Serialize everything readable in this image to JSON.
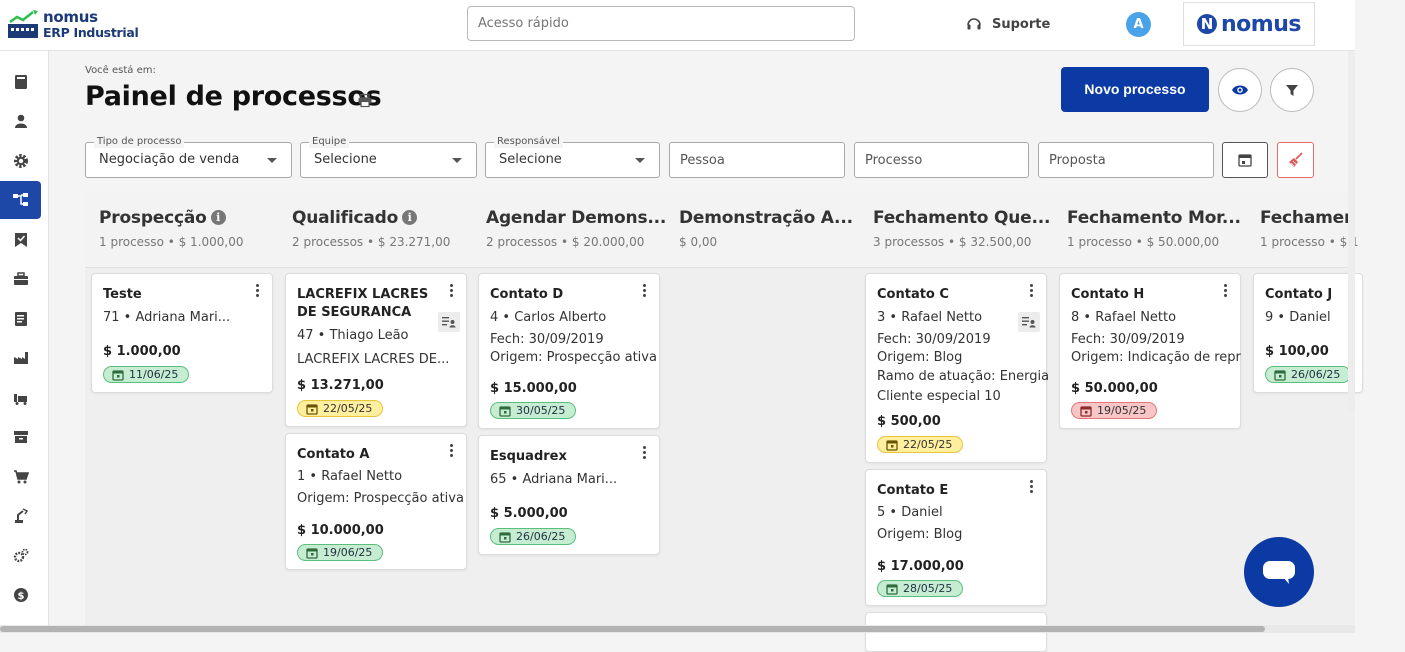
{
  "app": {
    "logo_line1": "nomus",
    "logo_line2": "ERP Industrial",
    "brand_text": "nomus",
    "brand_letter": "N"
  },
  "header": {
    "quick_access_placeholder": "Acesso rápido",
    "support_label": "Suporte",
    "avatar_letter": "A"
  },
  "sidebar": {
    "items": [
      {
        "icon": "book-icon"
      },
      {
        "icon": "user-icon"
      },
      {
        "icon": "gear-icon"
      },
      {
        "icon": "process-flow-icon",
        "active": true
      },
      {
        "icon": "bookmark-check-icon"
      },
      {
        "icon": "briefcase-icon"
      },
      {
        "icon": "ledger-icon"
      },
      {
        "icon": "factory-icon"
      },
      {
        "icon": "forklift-icon"
      },
      {
        "icon": "archive-icon"
      },
      {
        "icon": "cart-icon"
      },
      {
        "icon": "robot-arm-icon"
      },
      {
        "icon": "gears-icon"
      },
      {
        "icon": "dollar-icon"
      }
    ]
  },
  "page": {
    "breadcrumb": "Você está em:",
    "title": "Painel de processos",
    "new_button": "Novo processo"
  },
  "filters": {
    "tipo_label": "Tipo de processo",
    "tipo_value": "Negociação de venda",
    "equipe_label": "Equipe",
    "equipe_value": "Selecione",
    "responsavel_label": "Responsável",
    "responsavel_value": "Selecione",
    "pessoa_placeholder": "Pessoa",
    "processo_placeholder": "Processo",
    "proposta_placeholder": "Proposta"
  },
  "columns": [
    {
      "title": "Prospecção",
      "info": true,
      "summary": "1 processo • $ 1.000,00"
    },
    {
      "title": "Qualificado",
      "info": true,
      "summary": "2 processos • $ 23.271,00"
    },
    {
      "title": "Agendar Demons...",
      "info": false,
      "summary": "2 processos • $ 20.000,00"
    },
    {
      "title": "Demonstração A...",
      "info": false,
      "summary": "$ 0,00"
    },
    {
      "title": "Fechamento Que...",
      "info": false,
      "summary": "3 processos • $ 32.500,00"
    },
    {
      "title": "Fechamento Mor...",
      "info": false,
      "summary": "1 processo • $ 50.000,00"
    },
    {
      "title": "Fechamen",
      "info": false,
      "summary": "1 processo • $ 1"
    }
  ],
  "cards": {
    "teste": {
      "title": "Teste",
      "line1": "71 • Adriana Mari...",
      "value": "$ 1.000,00",
      "date": "11/06/25"
    },
    "lacrefix": {
      "title": "LACREFIX LACRES DE SEGURANCA",
      "line1": "47 • Thiago Leão",
      "line2": "LACREFIX LACRES DE...",
      "value": "$ 13.271,00",
      "date": "22/05/25"
    },
    "contato_a": {
      "title": "Contato A",
      "line1": "1 • Rafael Netto",
      "line2": "Origem: Prospecção ativa",
      "value": "$ 10.000,00",
      "date": "19/06/25"
    },
    "contato_d": {
      "title": "Contato D",
      "line1": "4 • Carlos Alberto",
      "line2": "Fech: 30/09/2019",
      "line3": "Origem: Prospecção ativa",
      "value": "$ 15.000,00",
      "date": "30/05/25"
    },
    "esquadrex": {
      "title": "Esquadrex",
      "line1": "65 • Adriana Mari...",
      "value": "$ 5.000,00",
      "date": "26/06/25"
    },
    "contato_c": {
      "title": "Contato C",
      "line1": "3 • Rafael Netto",
      "line2": "Fech: 30/09/2019",
      "line3": "Origem: Blog",
      "line4": "Ramo de atuação: Energia",
      "line5": "Cliente especial 10",
      "value": "$ 500,00",
      "date": "22/05/25"
    },
    "contato_e": {
      "title": "Contato E",
      "line1": "5 • Daniel",
      "line2": "Origem: Blog",
      "value": "$ 17.000,00",
      "date": "28/05/25"
    },
    "contato_h": {
      "title": "Contato H",
      "line1": "8 • Rafael Netto",
      "line2": "Fech: 30/09/2019",
      "line3": "Origem: Indicação de repr",
      "value": "$ 50.000,00",
      "date": "19/05/25"
    },
    "contato_j": {
      "title": "Contato J",
      "line1": "9 • Daniel",
      "value": "$ 100,00",
      "date": "26/06/25"
    }
  },
  "colors": {
    "primary": "#0b3aa5",
    "badge_green": "#c6ecd2",
    "badge_yellow": "#ffef9e",
    "badge_red": "#f8c6c6"
  }
}
